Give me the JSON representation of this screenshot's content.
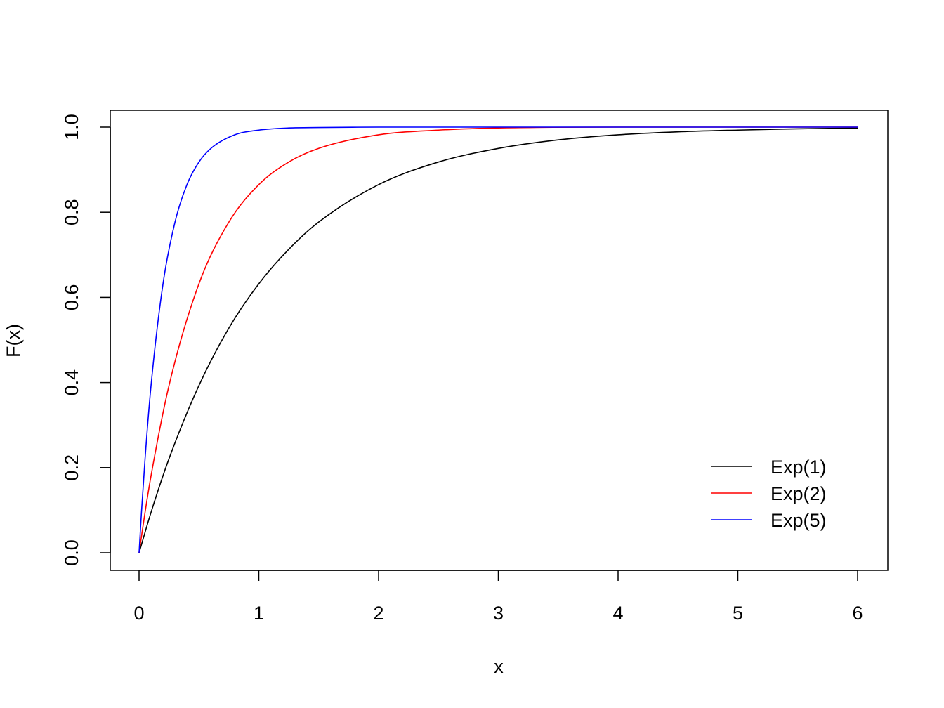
{
  "chart_data": {
    "type": "line",
    "title": "",
    "xlabel": "x",
    "ylabel": "F(x)",
    "xlim": [
      0,
      6
    ],
    "ylim": [
      0,
      1
    ],
    "x_ticks": [
      "0",
      "1",
      "2",
      "3",
      "4",
      "5",
      "6"
    ],
    "y_ticks": [
      "0.0",
      "0.2",
      "0.4",
      "0.6",
      "0.8",
      "1.0"
    ],
    "grid": false,
    "legend_position": "bottom-right",
    "series": [
      {
        "name": "Exp(1)",
        "color": "#000000",
        "x": [
          0,
          0.1,
          0.25,
          0.5,
          0.75,
          1,
          1.25,
          1.5,
          2,
          2.5,
          3,
          3.5,
          4,
          4.5,
          5,
          5.5,
          6
        ],
        "y": [
          0,
          0.095,
          0.221,
          0.393,
          0.528,
          0.632,
          0.713,
          0.777,
          0.865,
          0.918,
          0.95,
          0.97,
          0.982,
          0.989,
          0.993,
          0.996,
          0.998
        ]
      },
      {
        "name": "Exp(2)",
        "color": "#ff0000",
        "x": [
          0,
          0.05,
          0.1,
          0.25,
          0.5,
          0.75,
          1,
          1.25,
          1.5,
          2,
          2.5,
          3,
          4,
          5,
          6
        ],
        "y": [
          0,
          0.095,
          0.181,
          0.393,
          0.632,
          0.777,
          0.865,
          0.918,
          0.95,
          0.982,
          0.993,
          0.998,
          1.0,
          1.0,
          1.0
        ]
      },
      {
        "name": "Exp(5)",
        "color": "#0000ff",
        "x": [
          0,
          0.02,
          0.05,
          0.1,
          0.2,
          0.3,
          0.4,
          0.5,
          0.6,
          0.8,
          1,
          1.25,
          1.5,
          2,
          3,
          4,
          5,
          6
        ],
        "y": [
          0,
          0.095,
          0.221,
          0.393,
          0.632,
          0.777,
          0.865,
          0.918,
          0.95,
          0.982,
          0.993,
          0.998,
          0.999,
          1.0,
          1.0,
          1.0,
          1.0,
          1.0
        ]
      }
    ]
  }
}
